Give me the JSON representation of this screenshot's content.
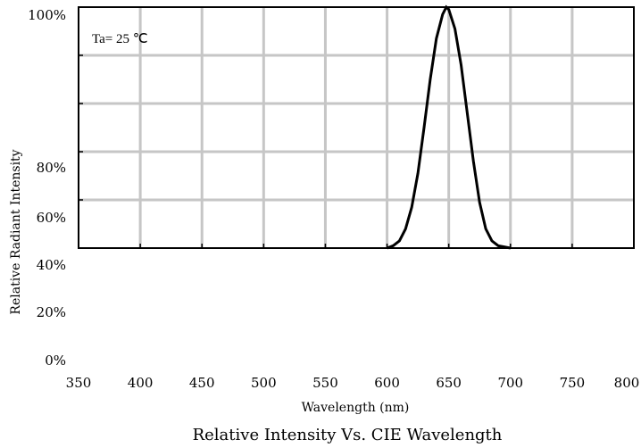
{
  "chart_data": {
    "type": "line",
    "title": "Relative Intensity Vs. CIE Wavelength",
    "xlabel": "Wavelength (nm)",
    "ylabel": "Relative Radiant Intensity",
    "annotation": "Ta= 25 ℃",
    "xlim": [
      350,
      800
    ],
    "x_ticks": [
      "350",
      "400",
      "450",
      "500",
      "550",
      "600",
      "650",
      "700",
      "750",
      "800"
    ],
    "y_tick_labels": [
      "100%",
      "80%",
      "60%",
      "40%",
      "20%",
      "0%"
    ],
    "grid": true,
    "series": [
      {
        "x": [
          600,
          605,
          610,
          615,
          620,
          625,
          630,
          635,
          640,
          645,
          648,
          650,
          655,
          660,
          665,
          670,
          675,
          680,
          685,
          690,
          700
        ],
        "y": [
          0,
          0.01,
          0.03,
          0.08,
          0.17,
          0.31,
          0.5,
          0.7,
          0.87,
          0.97,
          1.0,
          0.99,
          0.91,
          0.76,
          0.56,
          0.36,
          0.19,
          0.08,
          0.03,
          0.01,
          0
        ]
      }
    ]
  }
}
